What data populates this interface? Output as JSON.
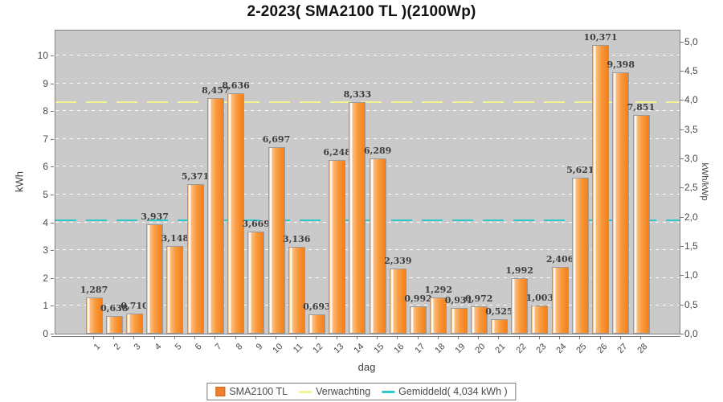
{
  "title": "2-2023( SMA2100 TL )(2100Wp)",
  "axes": {
    "left": {
      "label": "kWh",
      "ticks": [
        "0",
        "1",
        "2",
        "3",
        "4",
        "5",
        "6",
        "7",
        "8",
        "9",
        "10"
      ]
    },
    "right": {
      "label": "kWh/kWp",
      "ticks": [
        "0,0",
        "0,5",
        "1,0",
        "1,5",
        "2,0",
        "2,5",
        "3,0",
        "3,5",
        "4,0",
        "4,5",
        "5,0"
      ]
    },
    "x": {
      "label": "dag"
    }
  },
  "legend": {
    "items": [
      {
        "label": "SMA2100 TL",
        "swatch": "bar",
        "color": "#f08030"
      },
      {
        "label": "Verwachting",
        "swatch": "line",
        "color": "#f3f295"
      },
      {
        "label": "Gemiddeld( 4,034 kWh )",
        "swatch": "line",
        "color": "#2ec9c9"
      }
    ]
  },
  "chart_data": {
    "type": "bar",
    "title": "2-2023( SMA2100 TL )(2100Wp)",
    "xlabel": "dag",
    "ylabel_left": "kWh",
    "ylabel_right": "kWh/kWp",
    "series_name": "SMA2100 TL",
    "categories": [
      "1",
      "2",
      "3",
      "4",
      "5",
      "6",
      "7",
      "8",
      "9",
      "10",
      "11",
      "12",
      "13",
      "14",
      "15",
      "16",
      "17",
      "18",
      "19",
      "20",
      "21",
      "22",
      "23",
      "24",
      "25",
      "26",
      "27",
      "28"
    ],
    "values": [
      1.287,
      0.638,
      0.71,
      3.937,
      3.148,
      5.371,
      8.457,
      8.636,
      3.669,
      6.697,
      3.136,
      0.693,
      6.248,
      8.333,
      6.289,
      2.339,
      0.992,
      1.292,
      0.931,
      0.972,
      0.525,
      1.992,
      1.003,
      2.406,
      5.621,
      10.371,
      9.398,
      7.851
    ],
    "value_labels": [
      "1,287",
      "0,638",
      "0,710",
      "3,937",
      "3,148",
      "5,371",
      "8,457",
      "8,636",
      "3,669",
      "6,697",
      "3,136",
      "0,693",
      "6,248",
      "8,333",
      "6,289",
      "2,339",
      "0,992",
      "1,292",
      "0,931",
      "0,972",
      "0,525",
      "1,992",
      "1,003",
      "2,406",
      "5,621",
      "10,371",
      "9,398",
      "7,851"
    ],
    "reference_lines": [
      {
        "name": "Verwachting",
        "value_kwh": 8.29,
        "color": "#f3f295",
        "style": "dashed"
      },
      {
        "name": "Gemiddeld",
        "value_kwh": 4.034,
        "color": "#2ec9c9",
        "style": "dashed",
        "label": "Gemiddeld( 4,034 kWh )"
      }
    ],
    "average_kwh": 4.034,
    "system_wp": 2100,
    "kwh_per_kwp_factor": 2.1,
    "ylim": [
      0,
      10.9
    ],
    "ylim_right": [
      0,
      5.2
    ],
    "grid": "horizontal white dashed at each kWh",
    "legend_position": "bottom",
    "plot_bg": "#cacaca",
    "bar_color": "#f5811c"
  }
}
